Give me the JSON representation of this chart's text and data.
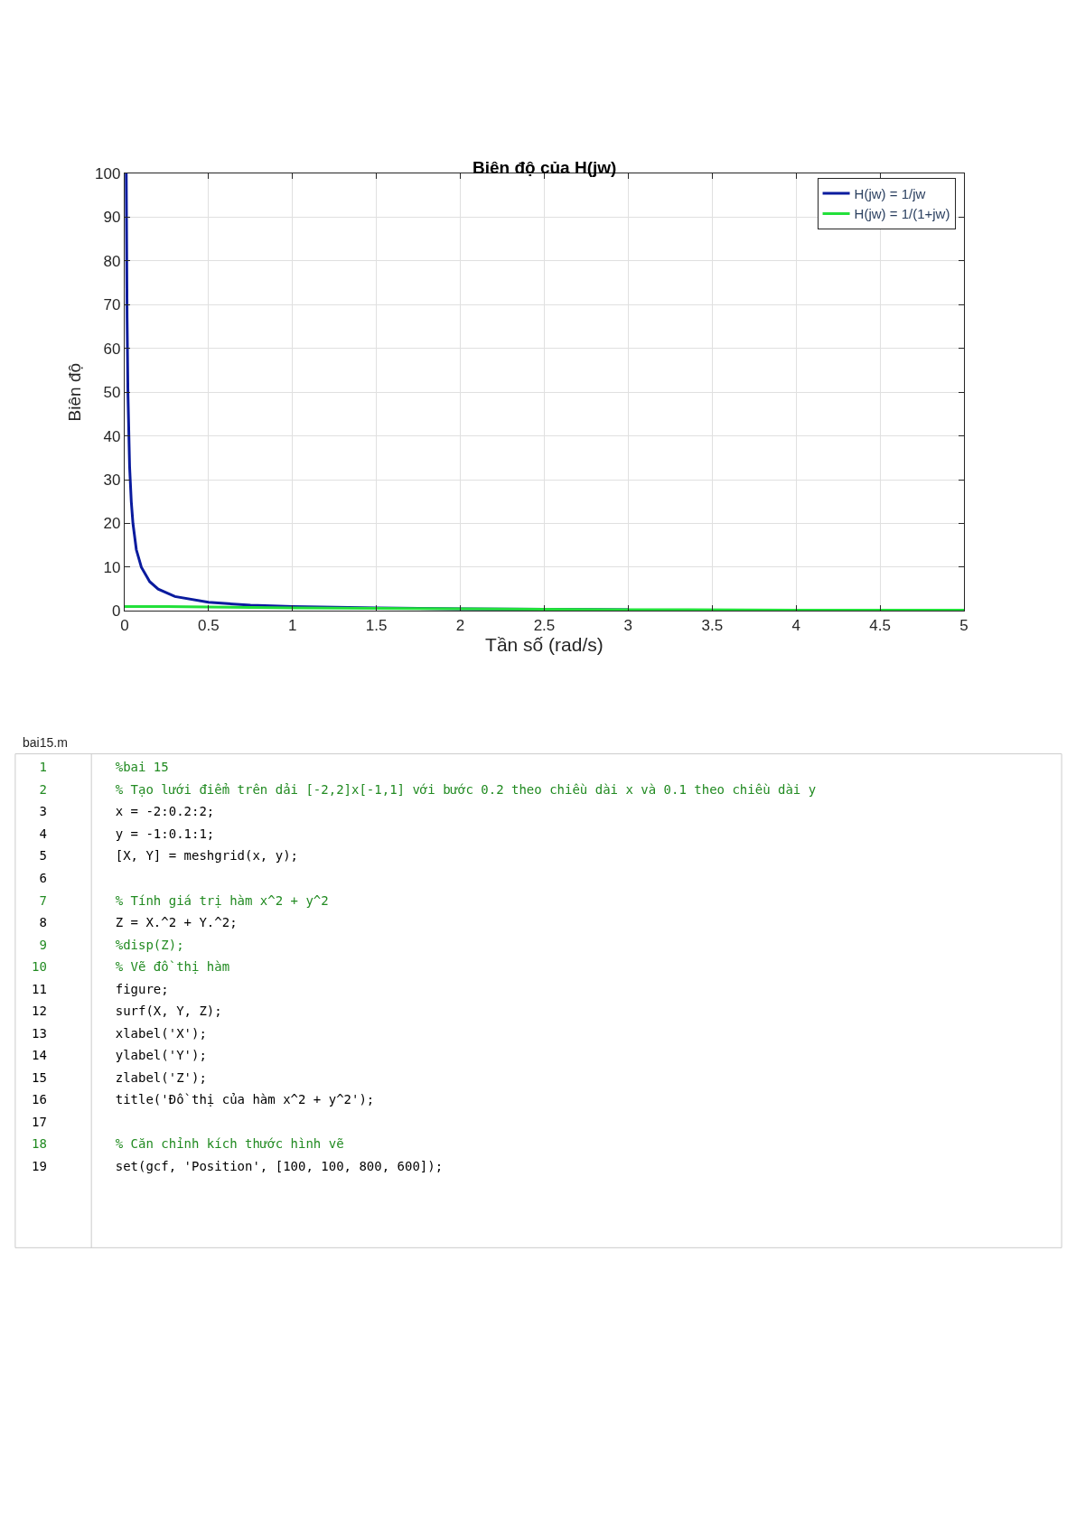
{
  "chart_data": [
    {
      "type": "line",
      "title": "Biên độ của H(jw)",
      "xlabel": "Tần số (rad/s)",
      "ylabel": "Biên độ",
      "series": [
        {
          "name": "H(jw) = 1/jw",
          "color": "#0a1b9e",
          "x": [
            0.01,
            0.015,
            0.02,
            0.03,
            0.04,
            0.05,
            0.07,
            0.1,
            0.15,
            0.2,
            0.3,
            0.5,
            0.75,
            1,
            1.5,
            2,
            3
          ],
          "values": [
            100,
            67,
            50,
            33,
            25,
            20,
            14,
            10,
            6.7,
            5,
            3.3,
            2,
            1.3,
            1,
            0.7,
            0.5,
            0.3
          ]
        },
        {
          "name": "H(jw) = 1/(1+jw)",
          "color": "#22e03a",
          "x": [
            0,
            0.25,
            0.5,
            0.75,
            1,
            1.5,
            2,
            3,
            4,
            5
          ],
          "values": [
            1,
            1,
            0.9,
            0.8,
            0.7,
            0.6,
            0.5,
            0.3,
            0.2,
            0.2
          ]
        }
      ],
      "xlim": [
        0,
        5
      ],
      "xticks": [
        0,
        0.5,
        1,
        1.5,
        2,
        2.5,
        3,
        3.5,
        4,
        4.5,
        5
      ],
      "ylim": [
        0,
        100
      ],
      "yticks": [
        0,
        10,
        20,
        30,
        40,
        50,
        60,
        70,
        80,
        90,
        100
      ],
      "grid": true,
      "legend": "top right",
      "marker": "none",
      "line_style": "solid"
    },
    {
      "type": "other",
      "title": "bai15.m",
      "annotations": [
        "1\t%bai 15",
        "2\t% Tạo lưới điểm trên dải [-2,2]x[-1,1] với bước 0.2 theo chiều dài x và 0.1 theo chiều dài y",
        "3\tx = -2:0.2:2;",
        "4\ty = -1:0.1:1;",
        "5\t[X, Y] = meshgrid(x, y);",
        "6\t",
        "7\t% Tính giá trị hàm x^2 + y^2",
        "8\tZ = X.^2 + Y.^2;",
        "9\t%disp(Z);",
        "10\t% Vẽ đồ thị hàm",
        "11\tfigure;",
        "12\tsurf(X, Y, Z);",
        "13\txlabel('X');",
        "14\tylabel('Y');",
        "15\tzlabel('Z');",
        "16\ttitle('Đồ thị của hàm x^2 + y^2');",
        "17\t",
        "18\t% Căn chỉnh kích thước hình vẽ",
        "19\tset(gcf, 'Position', [100, 100, 800, 600]);"
      ]
    }
  ]
}
